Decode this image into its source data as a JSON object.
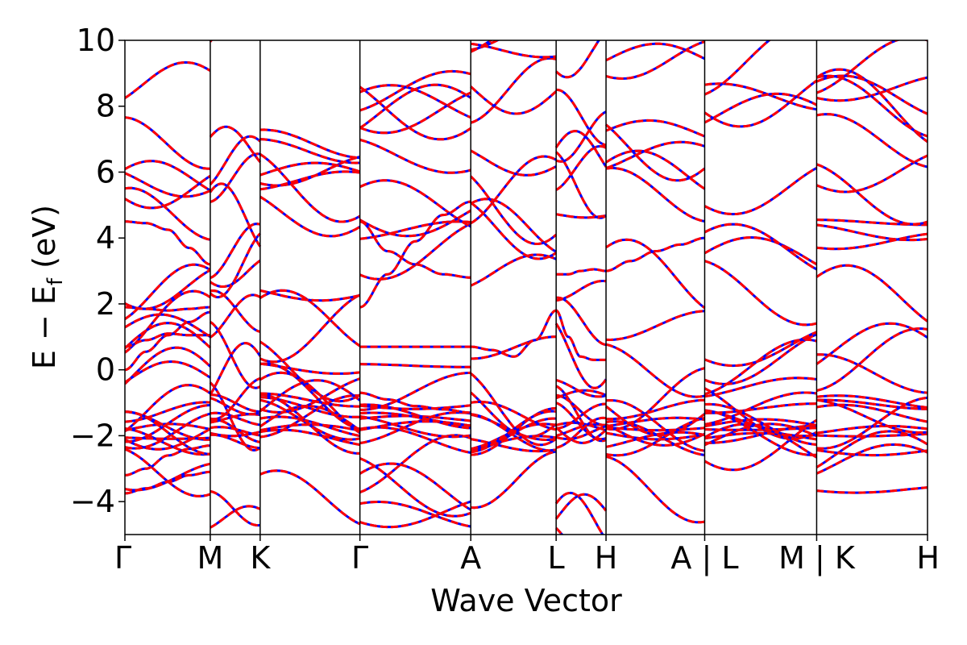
{
  "chart_data": {
    "type": "line",
    "title": "",
    "xlabel": "Wave Vector",
    "ylabel": "E − E_f (eV)",
    "ylabel_parts": {
      "main": "E − E",
      "sub": "f",
      "unit": " (eV)"
    },
    "ylim": [
      -5,
      10
    ],
    "yticks": [
      -4,
      -2,
      0,
      2,
      4,
      6,
      8,
      10
    ],
    "ytick_labels": [
      "−4",
      "−2",
      "0",
      "2",
      "4",
      "6",
      "8",
      "10"
    ],
    "kpath_positions": [
      0,
      0.77,
      1.22,
      2.12,
      3.12,
      3.89,
      4.34,
      5.23,
      6.24,
      7.24
    ],
    "kpath_labels": [
      "Γ",
      "M",
      "K",
      "Γ",
      "A",
      "L",
      "H",
      "A | L",
      "M | K",
      "H"
    ],
    "series": [
      {
        "color": "#0000ff",
        "style": "solid"
      },
      {
        "color": "#ff0000",
        "style": "dashed"
      }
    ],
    "bands_sample": [
      {
        "segment": "Γ–M",
        "x": [
          0,
          0.19,
          0.39,
          0.58,
          0.77
        ],
        "y": [
          0.0,
          0.55,
          1.05,
          1.45,
          1.75
        ]
      },
      {
        "segment": "Γ–M",
        "x": [
          0,
          0.19,
          0.39,
          0.58,
          0.77
        ],
        "y": [
          0.7,
          0.9,
          1.1,
          1.05,
          1.05
        ]
      },
      {
        "segment": "Γ–M",
        "x": [
          0,
          0.19,
          0.39,
          0.58,
          0.77
        ],
        "y": [
          1.9,
          1.85,
          1.8,
          1.85,
          1.9
        ]
      },
      {
        "segment": "Γ–M",
        "x": [
          0,
          0.19,
          0.39,
          0.58,
          0.77
        ],
        "y": [
          4.5,
          4.45,
          4.25,
          3.7,
          3.2
        ]
      },
      {
        "segment": "Γ–M",
        "x": [
          0,
          0.19,
          0.39,
          0.58,
          0.77
        ],
        "y": [
          -3.2,
          -3.0,
          -2.6,
          -2.4,
          -2.3
        ]
      },
      {
        "segment": "Γ–M",
        "x": [
          0,
          0.19,
          0.39,
          0.58,
          0.77
        ],
        "y": [
          -3.75,
          -3.6,
          -3.4,
          -3.2,
          -3.1
        ]
      },
      {
        "segment": "Γ–A",
        "x": [
          2.12,
          2.37,
          2.62,
          2.87,
          3.12
        ],
        "y": [
          0.7,
          0.7,
          0.7,
          0.7,
          0.7
        ]
      },
      {
        "segment": "Γ–A",
        "x": [
          2.12,
          2.37,
          2.62,
          2.87,
          3.12
        ],
        "y": [
          1.9,
          2.9,
          3.9,
          4.7,
          5.1
        ]
      },
      {
        "segment": "Γ–A",
        "x": [
          2.12,
          2.37,
          2.62,
          2.87,
          3.12
        ],
        "y": [
          4.5,
          3.6,
          3.2,
          2.9,
          2.8
        ]
      },
      {
        "segment": "Γ–A",
        "x": [
          2.12,
          2.37,
          2.62,
          2.87,
          3.12
        ],
        "y": [
          -0.7,
          -0.9,
          -1.1,
          -1.2,
          -1.3
        ]
      },
      {
        "segment": "A–L",
        "x": [
          3.12,
          3.31,
          3.51,
          3.7,
          3.89
        ],
        "y": [
          0.7,
          0.6,
          0.4,
          0.9,
          1.8
        ]
      },
      {
        "segment": "L–H",
        "x": [
          3.89,
          4.0,
          4.11,
          4.23,
          4.34
        ],
        "y": [
          1.8,
          1.0,
          0.4,
          0.3,
          0.3
        ]
      },
      {
        "segment": "L–H",
        "x": [
          3.89,
          4.0,
          4.11,
          4.23,
          4.34
        ],
        "y": [
          2.9,
          2.9,
          3.0,
          3.05,
          3.0
        ]
      },
      {
        "segment": "H–A",
        "x": [
          4.34,
          4.56,
          4.79,
          5.01,
          5.23
        ],
        "y": [
          3.0,
          3.3,
          3.6,
          3.8,
          4.0
        ]
      }
    ]
  }
}
